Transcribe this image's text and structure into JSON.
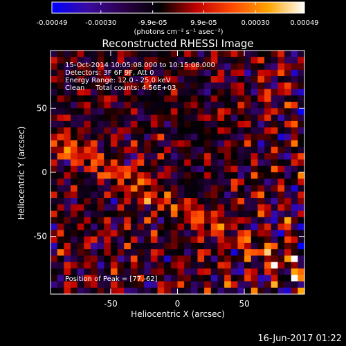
{
  "chart_data": {
    "type": "heatmap",
    "title": "Reconstructed RHESSI Image",
    "xlabel": "Heliocentric X (arcsec)",
    "ylabel": "Heliocentric Y (arcsec)",
    "xlim": [
      -95,
      95
    ],
    "ylim": [
      -95,
      95
    ],
    "xticks": [
      -50,
      0,
      50
    ],
    "yticks": [
      50,
      0,
      -50
    ],
    "colorbar": {
      "tick_labels": [
        "-0.00049",
        "-0.00030",
        "-9.9e-05",
        "9.9e-05",
        "0.00030",
        "0.00049"
      ],
      "tick_values": [
        -0.00049,
        -0.0003,
        -9.9e-05,
        9.9e-05,
        0.0003,
        0.00049
      ],
      "range": [
        -0.00049,
        0.00049
      ],
      "units_label": "(photons cm⁻² s⁻¹ asec⁻²)",
      "colormap": [
        "#0000ff",
        "#3a0aa0",
        "#2a0048",
        "#000000",
        "#c00000",
        "#ff4a00",
        "#ffa500",
        "#ffffff"
      ]
    },
    "grid": false
  },
  "annotations": {
    "time_range": "15-Oct-2014 10:05:08.000 to 10:15:08.000",
    "detectors": "Detectors: 3F 6F 9F, Att 0",
    "energy_range": "Energy Range: 12.0 - 25.0 keV",
    "clean_counts": "Clean     Total counts: 4.56E+03",
    "peak_position": "Position of Peak = [77,-62]"
  },
  "footer_timestamp": "16-Jun-2017 01:22"
}
